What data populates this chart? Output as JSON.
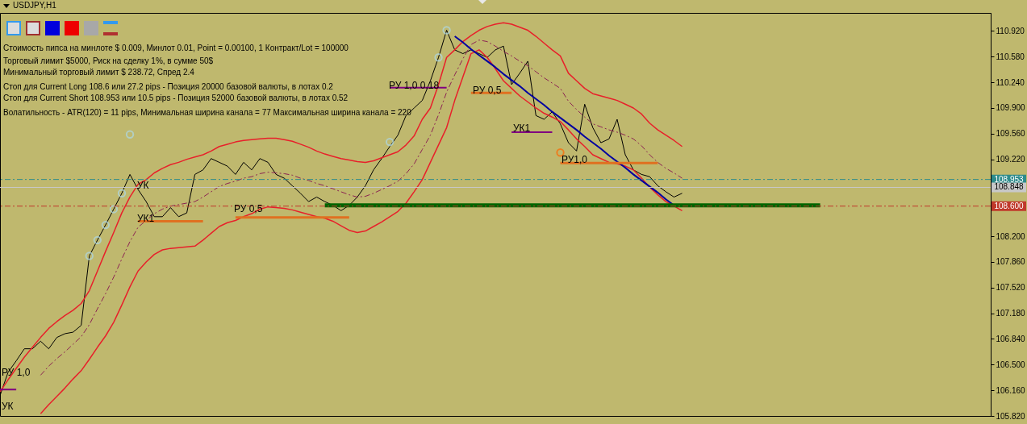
{
  "chart_data": {
    "type": "line",
    "title": "USDJPY,H1",
    "categories": [
      null,
      null,
      null,
      null,
      null,
      null,
      null,
      null,
      null,
      null,
      null,
      null,
      null,
      null,
      null,
      null,
      null,
      null,
      null,
      null,
      null,
      null,
      null,
      null,
      null,
      null,
      null,
      null,
      null,
      null,
      null,
      null,
      null,
      null,
      null,
      null,
      null,
      null,
      null,
      null,
      null,
      null,
      null,
      null,
      null,
      null,
      null,
      null,
      null,
      null,
      null,
      null,
      null,
      null,
      null,
      null,
      null,
      null,
      null,
      null,
      null,
      null,
      null,
      null,
      null,
      null,
      null,
      null,
      null,
      null,
      null,
      null,
      null,
      null,
      null,
      null,
      null,
      null,
      null,
      null,
      null,
      null,
      null,
      null,
      null,
      null,
      null,
      null,
      null,
      null,
      null,
      null,
      null,
      null,
      null,
      null,
      null,
      null,
      null,
      null,
      null,
      null,
      null,
      null,
      null,
      null,
      null,
      null,
      null,
      null,
      null,
      null,
      null,
      null,
      null,
      null,
      null,
      null,
      null,
      null,
      null,
      null,
      null
    ],
    "ylim": [
      105.82,
      111.16
    ],
    "yticks": [
      {
        "value": 105.82,
        "label": "105.820"
      },
      {
        "value": 106.16,
        "label": "106.160"
      },
      {
        "value": 106.5,
        "label": "106.500"
      },
      {
        "value": 106.84,
        "label": "106.840"
      },
      {
        "value": 107.18,
        "label": "107.180"
      },
      {
        "value": 107.52,
        "label": "107.520"
      },
      {
        "value": 107.86,
        "label": "107.860"
      },
      {
        "value": 108.2,
        "label": "108.200"
      },
      {
        "value": 109.22,
        "label": "109.220"
      },
      {
        "value": 109.56,
        "label": "109.560"
      },
      {
        "value": 109.9,
        "label": "109.900"
      },
      {
        "value": 110.24,
        "label": "110.240"
      },
      {
        "value": 110.58,
        "label": "110.580"
      },
      {
        "value": 110.92,
        "label": "110.920"
      }
    ],
    "tick_labels": "y",
    "series": [
      {
        "type": "line",
        "color": "#000000",
        "values": [
          106.09,
          106.4,
          106.55,
          106.71,
          106.71,
          106.81,
          106.71,
          106.86,
          106.91,
          106.93,
          107.02,
          107.94,
          108.15,
          108.35,
          108.56,
          108.77,
          109.02,
          108.82,
          108.66,
          108.46,
          108.46,
          108.58,
          108.46,
          108.51,
          109.02,
          109.08,
          109.23,
          109.18,
          109.13,
          109.02,
          109.18,
          109.08,
          109.23,
          109.18,
          109.02,
          108.97,
          108.87,
          108.77,
          108.66,
          108.72,
          108.66,
          108.61,
          108.54,
          108.61,
          108.72,
          108.87,
          109.08,
          109.23,
          109.39,
          109.54,
          109.8,
          109.9,
          110.0,
          110.26,
          110.57,
          110.93,
          110.67,
          110.62,
          110.67,
          110.62,
          110.57,
          110.67,
          110.72,
          110.21,
          110.36,
          110.52,
          109.8,
          109.75,
          109.85,
          109.69,
          109.44,
          109.33,
          109.95,
          109.64,
          109.44,
          109.49,
          109.75,
          109.28,
          109.08,
          109.02,
          108.99,
          108.87,
          108.79,
          108.72,
          108.77,
          null,
          null,
          null,
          null,
          null,
          null,
          null,
          null,
          null,
          null,
          null,
          null,
          null,
          null,
          null,
          null,
          null,
          null,
          null,
          null,
          null,
          null,
          null,
          null,
          null,
          null,
          null,
          null,
          null,
          null,
          null,
          null,
          null,
          null,
          null,
          null,
          null,
          null
        ]
      },
      {
        "type": "line",
        "color": "#e8202a",
        "values": [
          106.14,
          106.3,
          106.45,
          106.6,
          106.73,
          106.86,
          106.98,
          107.07,
          107.15,
          107.22,
          107.31,
          107.48,
          107.74,
          108.0,
          108.25,
          108.51,
          108.72,
          108.89,
          108.95,
          109.04,
          109.1,
          109.15,
          109.18,
          109.22,
          109.25,
          109.28,
          109.33,
          109.39,
          109.42,
          109.45,
          109.47,
          109.48,
          109.49,
          109.5,
          109.5,
          109.48,
          109.46,
          109.42,
          109.38,
          109.33,
          109.29,
          109.26,
          109.23,
          109.21,
          109.19,
          109.18,
          109.2,
          109.24,
          109.28,
          109.32,
          109.41,
          109.53,
          109.75,
          109.9,
          110.21,
          110.57,
          110.67,
          110.78,
          110.86,
          110.93,
          110.98,
          111.01,
          111.03,
          111.01,
          110.97,
          110.93,
          110.85,
          110.76,
          110.67,
          110.59,
          110.36,
          110.26,
          110.16,
          110.09,
          110.06,
          110.03,
          110.0,
          109.95,
          109.9,
          109.82,
          109.7,
          109.61,
          109.54,
          109.47,
          109.39,
          null,
          null,
          null,
          null,
          null,
          null,
          null,
          null,
          null,
          null,
          null,
          null,
          null,
          null,
          null,
          null,
          null,
          null,
          null,
          null,
          null,
          null,
          null,
          null,
          null,
          null,
          null,
          null,
          null,
          null,
          null,
          null,
          null,
          null,
          null,
          null,
          null,
          null
        ]
      },
      {
        "type": "line",
        "color": "#e8202a",
        "values": [
          null,
          null,
          null,
          null,
          null,
          105.85,
          105.97,
          106.08,
          106.19,
          106.31,
          106.42,
          106.57,
          106.73,
          106.88,
          107.06,
          107.29,
          107.53,
          107.74,
          107.86,
          107.96,
          108.02,
          108.04,
          108.05,
          108.06,
          108.07,
          108.15,
          108.24,
          108.33,
          108.38,
          108.41,
          108.46,
          108.5,
          108.56,
          108.59,
          108.58,
          108.57,
          108.55,
          108.52,
          108.49,
          108.46,
          108.44,
          108.4,
          108.34,
          108.28,
          108.25,
          108.27,
          108.33,
          108.39,
          108.46,
          108.53,
          108.64,
          108.79,
          108.95,
          109.18,
          109.41,
          109.64,
          110.0,
          110.31,
          110.62,
          110.67,
          110.57,
          110.42,
          110.26,
          110.16,
          110.06,
          109.98,
          109.9,
          109.83,
          109.78,
          109.72,
          109.61,
          109.49,
          109.39,
          109.28,
          109.23,
          109.18,
          109.16,
          109.13,
          109.08,
          108.97,
          108.85,
          108.75,
          108.66,
          108.6,
          108.54,
          null,
          null,
          null,
          null,
          null,
          null,
          null,
          null,
          null,
          null,
          null,
          null,
          null,
          null,
          null,
          null,
          null,
          null,
          null,
          null,
          null,
          null,
          null,
          null,
          null,
          null,
          null,
          null,
          null,
          null,
          null,
          null,
          null,
          null,
          null,
          null,
          null,
          null
        ]
      },
      {
        "type": "line",
        "color": "#8b2252",
        "line_style": "dashed",
        "values": [
          null,
          null,
          null,
          null,
          null,
          106.36,
          106.48,
          106.58,
          106.67,
          106.77,
          106.87,
          107.03,
          107.24,
          107.44,
          107.66,
          107.9,
          108.13,
          108.32,
          108.41,
          108.5,
          108.56,
          108.6,
          108.62,
          108.64,
          108.66,
          108.72,
          108.79,
          108.86,
          108.9,
          108.93,
          108.97,
          108.99,
          109.03,
          109.05,
          109.04,
          109.03,
          109.01,
          108.97,
          108.94,
          108.9,
          108.87,
          108.83,
          108.79,
          108.75,
          108.72,
          108.73,
          108.77,
          108.82,
          108.87,
          108.93,
          109.03,
          109.16,
          109.35,
          109.54,
          109.81,
          110.11,
          110.34,
          110.55,
          110.74,
          110.8,
          110.78,
          110.72,
          110.65,
          110.59,
          110.52,
          110.46,
          110.38,
          110.3,
          110.23,
          110.16,
          109.99,
          109.88,
          109.78,
          109.69,
          109.65,
          109.61,
          109.58,
          109.54,
          109.49,
          109.4,
          109.28,
          109.18,
          109.1,
          109.04,
          108.97,
          null,
          null,
          null,
          null,
          null,
          null,
          null,
          null,
          null,
          null,
          null,
          null,
          null,
          null,
          null,
          null,
          null,
          null,
          null,
          null,
          null,
          null,
          null,
          null,
          null,
          null,
          null,
          null,
          null,
          null,
          null,
          null,
          null,
          null,
          null,
          null,
          null,
          null
        ]
      },
      {
        "type": "line",
        "color": "#0000a0",
        "values": [
          null,
          null,
          null,
          null,
          null,
          null,
          null,
          null,
          null,
          null,
          null,
          null,
          null,
          null,
          null,
          null,
          null,
          null,
          null,
          null,
          null,
          null,
          null,
          null,
          null,
          null,
          null,
          null,
          null,
          null,
          null,
          null,
          null,
          null,
          null,
          null,
          null,
          null,
          null,
          null,
          null,
          null,
          null,
          null,
          null,
          null,
          null,
          null,
          null,
          null,
          null,
          null,
          null,
          null,
          null,
          null,
          110.85,
          110.77,
          110.68,
          110.6,
          110.52,
          110.44,
          110.35,
          110.27,
          110.19,
          110.1,
          110.02,
          109.94,
          109.85,
          109.77,
          109.69,
          109.61,
          109.52,
          109.44,
          109.36,
          109.27,
          109.19,
          109.11,
          109.02,
          108.94,
          108.86,
          108.78,
          108.69,
          108.61,
          null,
          null,
          null,
          null,
          null,
          null,
          null,
          null,
          null,
          null,
          null,
          null,
          null,
          null,
          null,
          null,
          null,
          null,
          null,
          null,
          null,
          null,
          null,
          null,
          null,
          null,
          null,
          null,
          null,
          null,
          null,
          null,
          null,
          null,
          null,
          null,
          null,
          null,
          null
        ]
      },
      {
        "type": "line",
        "color": "#006400",
        "values": [
          null,
          null,
          null,
          null,
          null,
          null,
          null,
          null,
          null,
          null,
          null,
          null,
          null,
          null,
          null,
          null,
          null,
          null,
          null,
          null,
          null,
          null,
          null,
          null,
          null,
          null,
          null,
          null,
          null,
          null,
          null,
          null,
          null,
          null,
          null,
          null,
          null,
          null,
          null,
          null,
          108.61,
          108.61,
          108.61,
          108.61,
          108.61,
          108.61,
          108.61,
          108.61,
          108.61,
          108.61,
          108.61,
          108.61,
          108.61,
          108.61,
          108.61,
          108.61,
          108.61,
          108.61,
          108.61,
          108.61,
          108.61,
          108.61,
          108.61,
          108.61,
          108.61,
          108.61,
          108.61,
          108.61,
          108.61,
          108.61,
          108.61,
          108.61,
          108.61,
          108.61,
          108.61,
          108.61,
          108.61,
          108.61,
          108.61,
          108.61,
          108.61,
          108.61,
          108.61,
          108.61,
          108.61,
          108.61,
          108.61,
          108.61,
          108.61,
          108.61,
          108.61,
          108.61,
          108.61,
          108.61,
          108.61,
          108.61,
          108.61,
          108.61,
          108.61,
          108.61,
          108.61,
          108.61,
          null,
          null,
          null,
          null,
          null,
          null,
          null,
          null,
          null,
          null,
          null,
          null,
          null,
          null,
          null,
          null,
          null,
          null,
          null,
          null,
          null
        ]
      },
      {
        "type": "line",
        "color": "#e07020",
        "values": [
          null,
          null,
          null,
          null,
          null,
          null,
          null,
          null,
          null,
          null,
          null,
          null,
          null,
          null,
          null,
          null,
          null,
          108.4,
          108.4,
          108.4,
          108.4,
          108.4,
          108.4,
          108.4,
          108.4,
          108.4,
          null,
          null,
          null,
          108.45,
          108.45,
          108.45,
          108.45,
          108.45,
          108.45,
          108.45,
          108.45,
          108.45,
          108.45,
          108.45,
          108.45,
          108.45,
          108.45,
          108.45,
          null,
          null,
          null,
          null,
          null,
          null,
          null,
          null,
          null,
          null,
          null,
          null,
          null,
          null,
          110.1,
          110.1,
          110.1,
          110.1,
          110.1,
          110.1,
          null,
          null,
          null,
          null,
          null,
          109.17,
          109.17,
          109.17,
          109.17,
          109.17,
          109.17,
          109.17,
          109.17,
          109.17,
          109.17,
          109.17,
          109.17,
          109.17,
          null,
          null,
          null,
          null,
          null,
          null,
          null,
          null,
          null,
          null,
          null,
          null,
          null,
          null,
          null,
          null,
          null,
          null,
          null,
          null,
          null,
          null,
          null,
          null,
          null,
          null,
          null,
          null,
          null,
          null,
          null,
          null,
          null,
          null,
          null,
          null,
          null,
          null,
          null,
          null,
          null
        ]
      },
      {
        "type": "line",
        "color": "#800080",
        "values": [
          106.17,
          106.17,
          106.17,
          null,
          null,
          null,
          null,
          null,
          null,
          null,
          null,
          null,
          null,
          null,
          null,
          null,
          null,
          null,
          null,
          null,
          null,
          null,
          null,
          null,
          null,
          null,
          null,
          null,
          null,
          null,
          null,
          null,
          null,
          null,
          null,
          null,
          null,
          null,
          null,
          null,
          null,
          null,
          null,
          null,
          null,
          null,
          null,
          null,
          110.17,
          110.17,
          110.17,
          110.17,
          110.17,
          110.17,
          110.17,
          110.17,
          null,
          null,
          null,
          null,
          null,
          null,
          null,
          109.58,
          109.58,
          109.58,
          109.58,
          109.58,
          109.58,
          null,
          null,
          null,
          null,
          null,
          null,
          null,
          null,
          null,
          null,
          null,
          null,
          null,
          null,
          null,
          null,
          null,
          null,
          null,
          null,
          null,
          null,
          null,
          null,
          null,
          null,
          null,
          null,
          null,
          null,
          null,
          null,
          null,
          null,
          null,
          null,
          null,
          null,
          null,
          null,
          null,
          null,
          null,
          null,
          null,
          null,
          null,
          null,
          null,
          null,
          null,
          null,
          null,
          null
        ]
      },
      {
        "type": "scatter",
        "color": "#add8e6",
        "marker": "circle",
        "values": [
          null,
          null,
          null,
          null,
          null,
          null,
          null,
          null,
          null,
          null,
          null,
          107.94,
          108.15,
          108.35,
          108.56,
          108.77,
          109.55,
          null,
          null,
          null,
          null,
          null,
          null,
          null,
          null,
          null,
          null,
          null,
          null,
          null,
          null,
          null,
          null,
          null,
          null,
          null,
          null,
          null,
          null,
          null,
          null,
          null,
          null,
          null,
          null,
          null,
          null,
          null,
          109.45,
          null,
          null,
          null,
          null,
          null,
          110.57,
          110.93,
          null,
          null,
          null,
          null,
          null,
          null,
          null,
          null,
          null,
          null,
          null,
          null,
          null,
          null,
          null,
          null,
          null,
          null,
          null,
          null,
          null,
          null,
          null,
          null,
          null,
          null,
          null,
          null,
          null,
          null,
          null,
          null,
          null,
          null,
          null,
          null,
          null,
          null,
          null,
          null,
          null,
          null,
          null,
          null,
          null,
          null,
          null,
          null,
          null,
          null,
          null,
          null,
          null,
          null,
          null,
          null,
          null,
          null,
          null,
          null,
          null,
          null,
          null,
          null,
          null,
          null,
          null
        ]
      },
      {
        "type": "scatter",
        "color": "#ff6600",
        "marker": "circle",
        "values": [
          null,
          null,
          null,
          null,
          null,
          null,
          null,
          null,
          null,
          null,
          null,
          null,
          null,
          null,
          null,
          null,
          null,
          null,
          null,
          null,
          null,
          null,
          null,
          null,
          null,
          null,
          null,
          null,
          null,
          null,
          null,
          null,
          null,
          null,
          null,
          null,
          null,
          null,
          null,
          null,
          null,
          null,
          null,
          null,
          null,
          null,
          null,
          null,
          null,
          null,
          null,
          null,
          null,
          null,
          null,
          null,
          null,
          null,
          null,
          null,
          null,
          null,
          null,
          null,
          null,
          null,
          null,
          null,
          null,
          109.31,
          null,
          null,
          null,
          null,
          null,
          null,
          null,
          null,
          null,
          null,
          null,
          null,
          null,
          null,
          null,
          null,
          null,
          null,
          null,
          null,
          null,
          null,
          null,
          null,
          null,
          null,
          null,
          null,
          null,
          null,
          null,
          null,
          null,
          null,
          null,
          null,
          null,
          null,
          null,
          null,
          null,
          null,
          null,
          null,
          null,
          null,
          null,
          null,
          null,
          null,
          null,
          null,
          null
        ]
      }
    ],
    "ref_lines": [
      {
        "axis": "y",
        "value": 108.953,
        "label": "108.953",
        "color": "#2e8b8b",
        "line_style": "dashed"
      },
      {
        "axis": "y",
        "value": 108.848,
        "label": "108.848",
        "color": "#c8c8c8",
        "line_style": "solid"
      },
      {
        "axis": "y",
        "value": 108.6,
        "label": "108.600",
        "color": "#c0392b",
        "line_style": "dashed"
      }
    ],
    "annotations": [
      "Стоимость пипса на минлоте  $ 0.009,   Минлот 0.01,  Point = 0.00100,  1 Контракт/Lot = 100000",
      "Торговый лимит $5000, Риск на сделку 1%,  в сумме 50$",
      "Минимальный торговый лимит $ 238.72,   Спред  2.4",
      "Стоп для Current Long  108.6  или  27.2 pips -  Позиция 20000 базовой валюты,  в лотах 0.2",
      "Стоп для Current Short 108.953  или  10.5 pips -  Позиция 52000 базовой валюты,  в лотах 0.52",
      "Волатильность - ATR(120) = 11 pips,  Минимальная ширина канала = 77    Максимальная ширина канала = 220",
      "РУ 1,0",
      "УК",
      {
        "text": "УК",
        "y": 108.87
      },
      {
        "text": "УК1",
        "y": 108.44
      },
      {
        "text": "РУ 0,5",
        "y": 108.56
      },
      {
        "text": "РУ 1,0  0.18",
        "y": 110.2
      },
      {
        "text": "РУ 0,5",
        "y": 110.14
      },
      {
        "text": "УК1",
        "y": 109.63
      },
      {
        "text": "РУ1,0",
        "y": 109.22
      }
    ]
  }
}
